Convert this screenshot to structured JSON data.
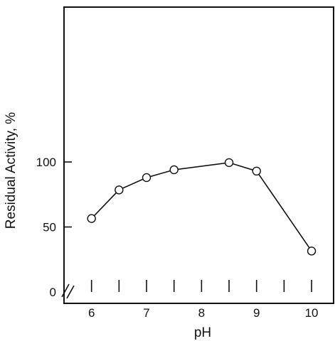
{
  "chart_data": {
    "type": "line",
    "xlabel": "pH",
    "ylabel": "Residual Activity, %",
    "x": [
      6,
      6.5,
      7,
      7.5,
      8.5,
      9,
      10
    ],
    "values": [
      56.5,
      78.5,
      88,
      94,
      99.5,
      93,
      31.5
    ],
    "xlim": [
      5.5,
      10.4
    ],
    "ylim": [
      0,
      110
    ],
    "x_ticks": [
      6,
      6.5,
      7,
      7.5,
      8,
      8.5,
      9,
      9.5,
      10
    ],
    "x_tick_labels": [
      {
        "x": 6,
        "label": "6"
      },
      {
        "x": 7,
        "label": "7"
      },
      {
        "x": 8,
        "label": "8"
      },
      {
        "x": 9,
        "label": "9"
      },
      {
        "x": 10,
        "label": "10"
      }
    ],
    "y_ticks": [
      {
        "y": 0,
        "label": "0"
      },
      {
        "y": 50,
        "label": "50"
      },
      {
        "y": 100,
        "label": "100"
      }
    ],
    "axis_break": true,
    "marker": "open-circle",
    "line_color": "#111111",
    "grid": false
  }
}
